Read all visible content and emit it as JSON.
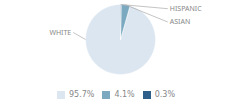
{
  "chart_data": {
    "type": "pie",
    "categories": [
      "WHITE",
      "ASIAN",
      "HISPANIC"
    ],
    "values": [
      95.7,
      4.1,
      0.3
    ],
    "value_labels": [
      "95.7%",
      "4.1%",
      "0.3%"
    ],
    "colors": [
      "#dce6f0",
      "#7aa9c0",
      "#2e5f8a"
    ],
    "legend": "bottom"
  }
}
